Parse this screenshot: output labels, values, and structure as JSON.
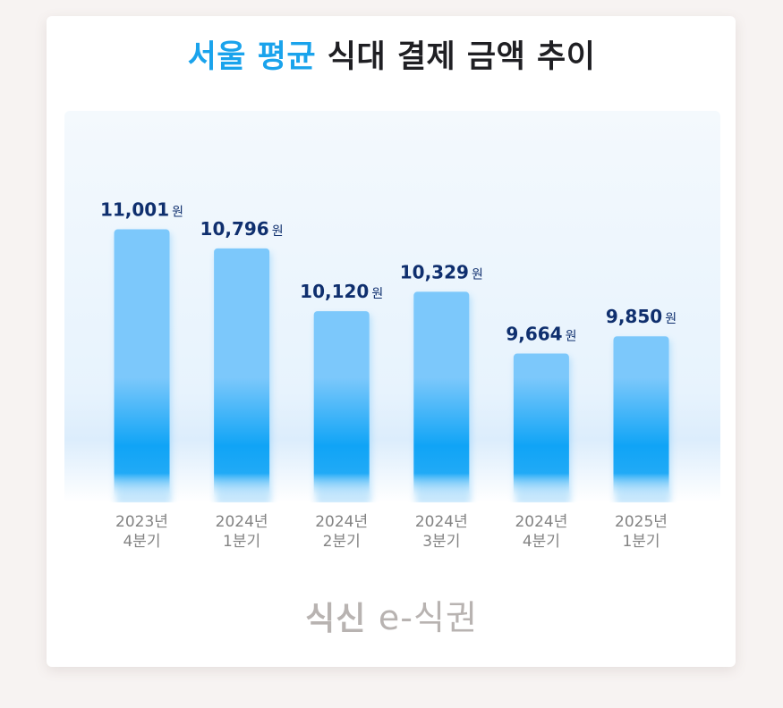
{
  "chart_data": {
    "type": "bar",
    "title_parts": [
      "서울 평균 ",
      "식대 결제 금액 추이"
    ],
    "unit": "원",
    "categories": [
      [
        "2023년",
        "4분기"
      ],
      [
        "2024년",
        "1분기"
      ],
      [
        "2024년",
        "2분기"
      ],
      [
        "2024년",
        "3분기"
      ],
      [
        "2024년",
        "4분기"
      ],
      [
        "2025년",
        "1분기"
      ]
    ],
    "values": [
      11001,
      10796,
      10120,
      10329,
      9664,
      9850
    ],
    "value_labels": [
      "11,001",
      "10,796",
      "10,120",
      "10,329",
      "9,664",
      "9,850"
    ],
    "grid": false,
    "legend": "none"
  },
  "colors": {
    "title_highlight": "#1aa3ec",
    "title_text": "#1f1f23",
    "bar_top": "#7cc8fb",
    "bar_mid": "#10a4f6",
    "value_label": "#0f2f6e",
    "axis_label": "#838383",
    "logo": "#b8b3b1"
  },
  "logo": {
    "text_a": "식신",
    "text_b": "e-식권"
  }
}
